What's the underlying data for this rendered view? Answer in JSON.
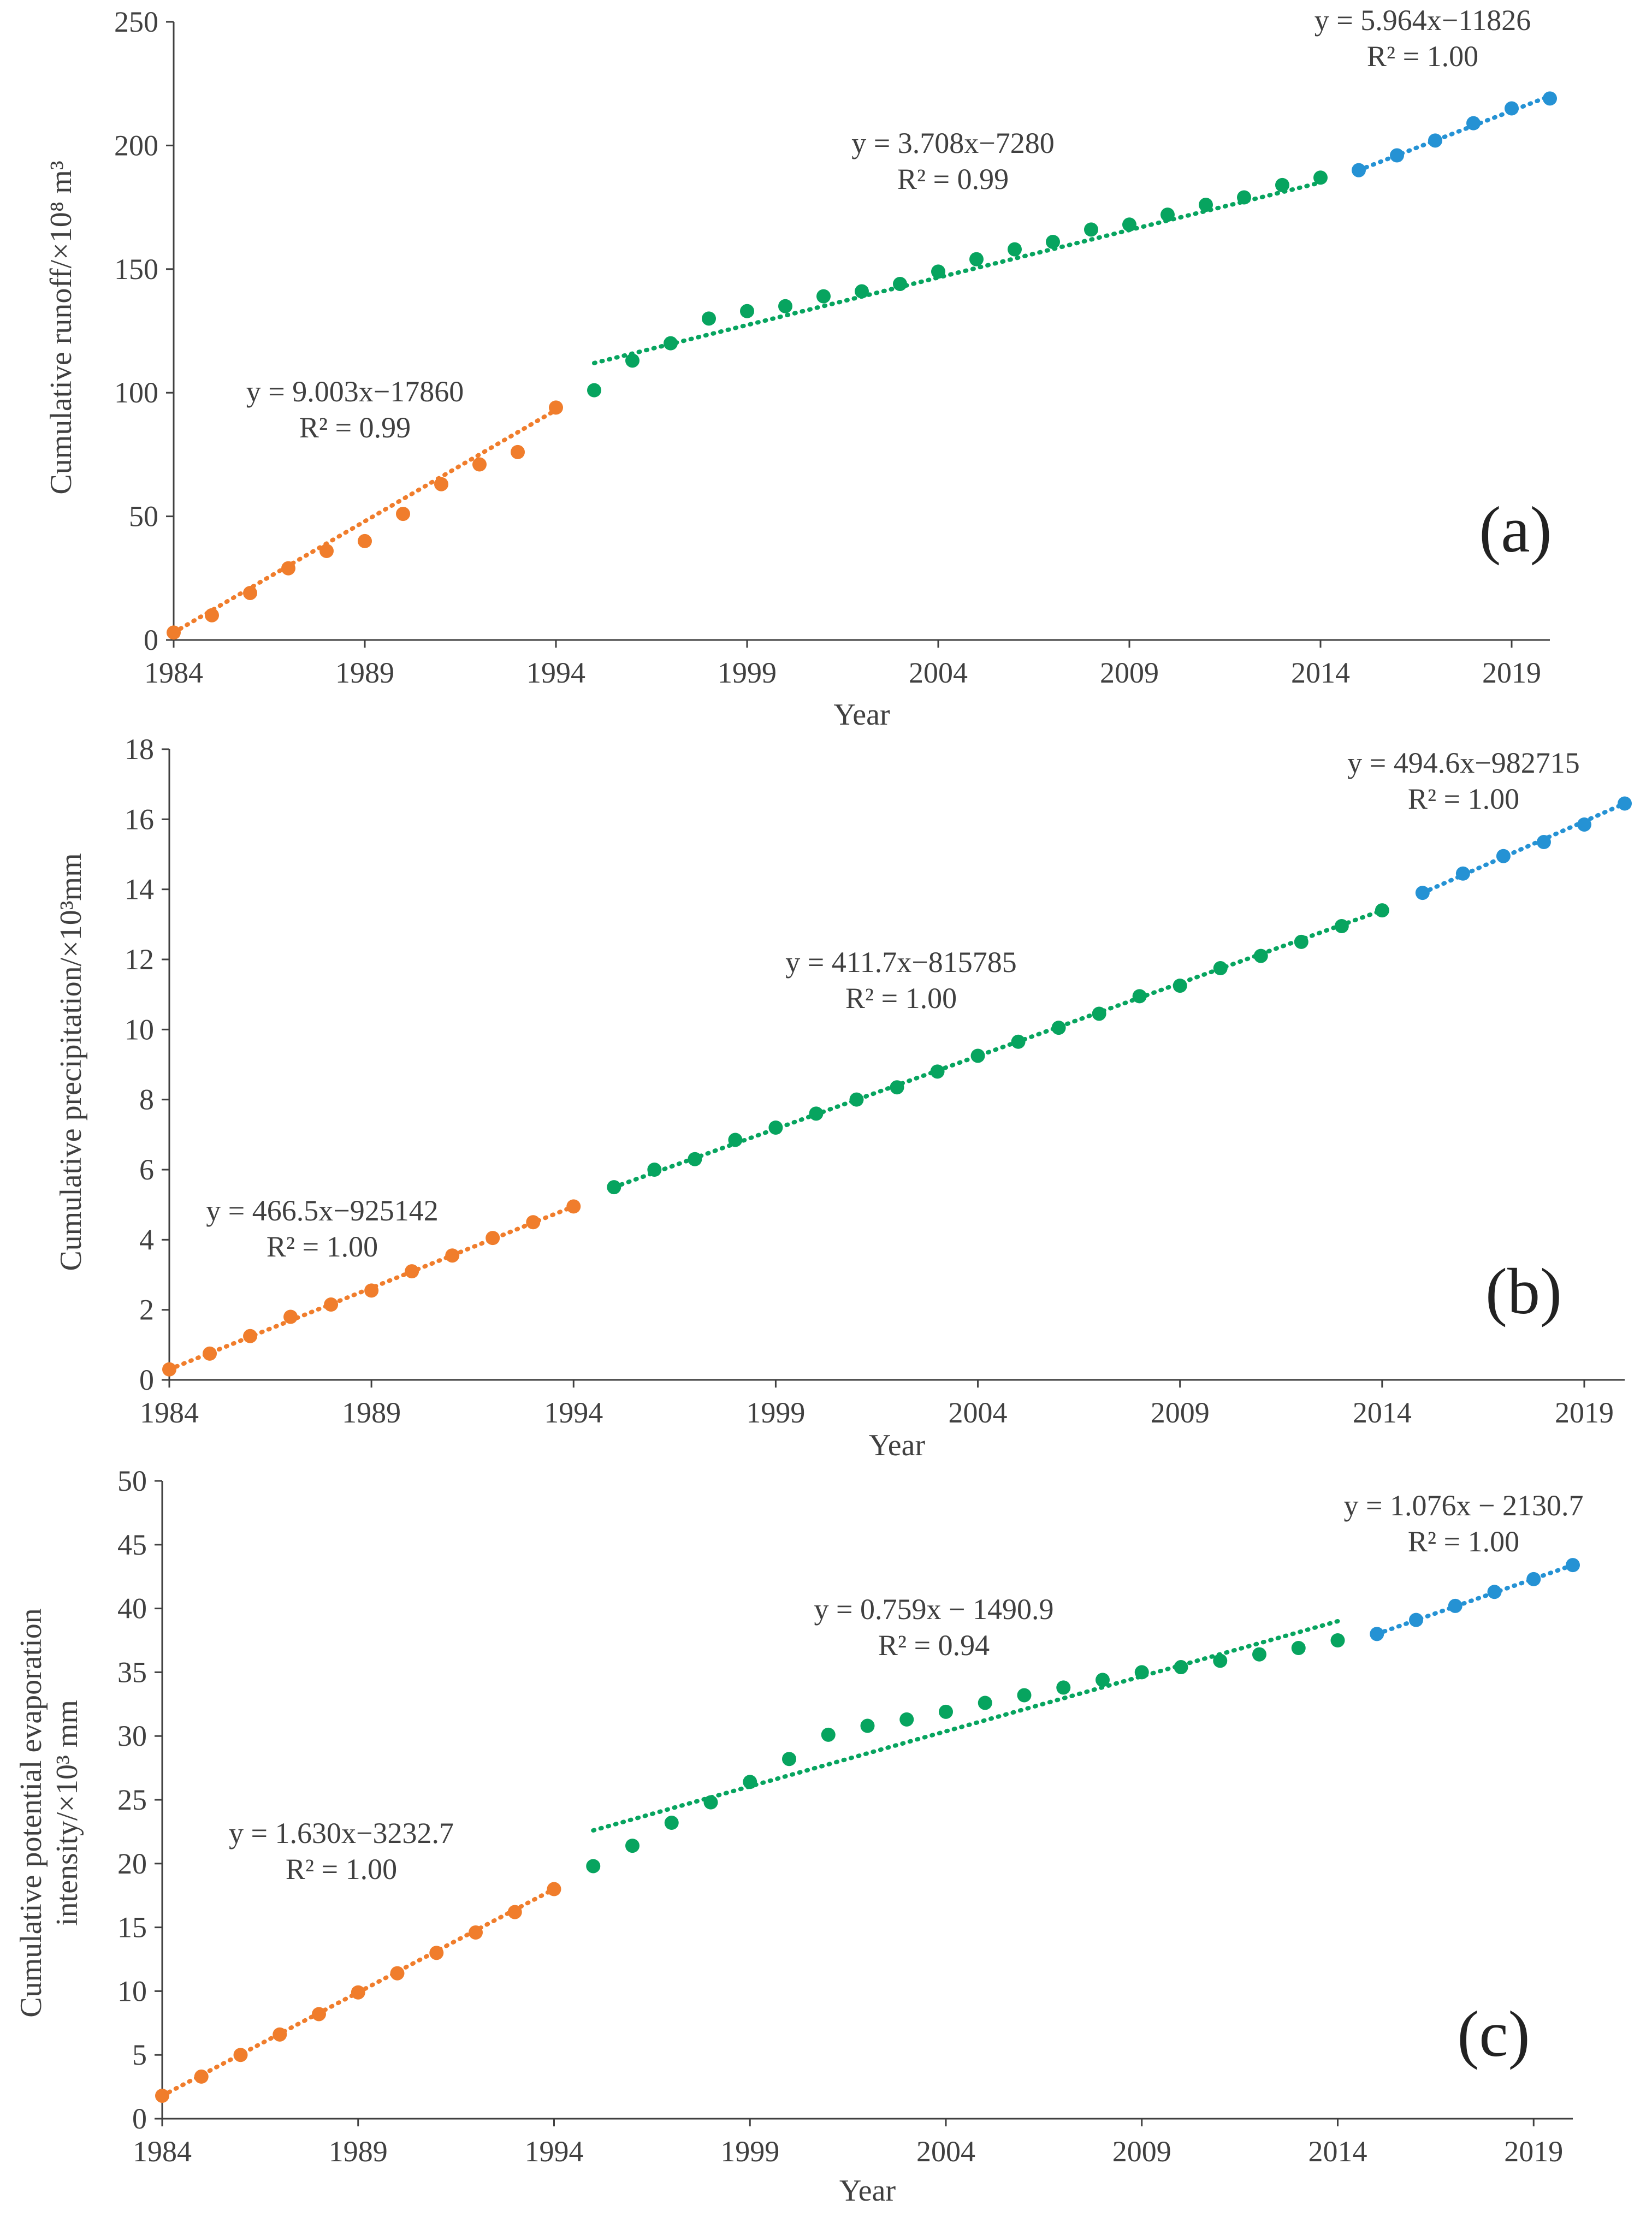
{
  "colors": {
    "pre_1994": "#f07d2c",
    "mid_1995_2014": "#07a45f",
    "post_2015": "#2592d4",
    "axis": "#404040"
  },
  "chart_data": [
    {
      "type": "scatter",
      "panel_label": "(a)",
      "xlabel": "Year",
      "ylabel": "Cumulative runoff/×10⁸ m³",
      "xlim": [
        1984,
        2020
      ],
      "ylim": [
        0,
        250
      ],
      "x_ticks": [
        "1984",
        "1989",
        "1994",
        "1999",
        "2004",
        "2009",
        "2014",
        "2019"
      ],
      "y_ticks": [
        "0",
        "50",
        "100",
        "150",
        "200",
        "250"
      ],
      "series": [
        {
          "x": [
            1984,
            1985,
            1986,
            1987,
            1988,
            1989,
            1990,
            1991,
            1992,
            1993,
            1994
          ],
          "y": [
            3,
            10,
            19,
            29,
            36,
            40,
            51,
            63,
            71,
            76,
            94
          ],
          "trend": {
            "equation": "y = 9.003x−17860",
            "r2": "R² = 0.99",
            "x": [
              1984,
              1994
            ],
            "y": [
              3,
              93
            ]
          }
        },
        {
          "x": [
            1995,
            1996,
            1997,
            1998,
            1999,
            2000,
            2001,
            2002,
            2003,
            2004,
            2005,
            2006,
            2007,
            2008,
            2009,
            2010,
            2011,
            2012,
            2013,
            2014
          ],
          "y": [
            101,
            113,
            120,
            130,
            133,
            135,
            139,
            141,
            144,
            149,
            154,
            158,
            161,
            166,
            168,
            172,
            176,
            179,
            184,
            187
          ],
          "trend": {
            "equation": "y = 3.708x−7280",
            "r2": "R² = 0.99",
            "x": [
              1995,
              2014
            ],
            "y": [
              112,
              185
            ]
          }
        },
        {
          "x": [
            2015,
            2016,
            2017,
            2018,
            2019,
            2020
          ],
          "y": [
            190,
            196,
            202,
            209,
            215,
            219
          ],
          "trend": {
            "equation": "y = 5.964x−11826",
            "r2": "R² = 1.00",
            "x": [
              2015,
              2020
            ],
            "y": [
              190,
              220
            ]
          }
        }
      ]
    },
    {
      "type": "scatter",
      "panel_label": "(b)",
      "xlabel": "Year",
      "ylabel": "Cumulative precipitation/×10³mm",
      "xlim": [
        1984,
        2020
      ],
      "ylim": [
        0,
        18
      ],
      "x_ticks": [
        "1984",
        "1989",
        "1994",
        "1999",
        "2004",
        "2009",
        "2014",
        "2019"
      ],
      "y_ticks": [
        "0",
        "2",
        "4",
        "6",
        "8",
        "10",
        "12",
        "14",
        "16",
        "18"
      ],
      "series": [
        {
          "x": [
            1984,
            1985,
            1986,
            1987,
            1988,
            1989,
            1990,
            1991,
            1992,
            1993,
            1994
          ],
          "y": [
            0.3,
            0.75,
            1.25,
            1.8,
            2.15,
            2.55,
            3.1,
            3.55,
            4.05,
            4.5,
            4.95
          ],
          "trend": {
            "equation": "y = 466.5x−925142",
            "r2": "R² = 1.00",
            "x": [
              1984,
              1994
            ],
            "y": [
              0.3,
              4.95
            ]
          }
        },
        {
          "x": [
            1995,
            1996,
            1997,
            1998,
            1999,
            2000,
            2001,
            2002,
            2003,
            2004,
            2005,
            2006,
            2007,
            2008,
            2009,
            2010,
            2011,
            2012,
            2013,
            2014
          ],
          "y": [
            5.5,
            6.0,
            6.3,
            6.85,
            7.2,
            7.6,
            8.0,
            8.35,
            8.8,
            9.25,
            9.65,
            10.05,
            10.45,
            10.95,
            11.25,
            11.75,
            12.1,
            12.5,
            12.95,
            13.4
          ],
          "trend": {
            "equation": "y = 411.7x−815785",
            "r2": "R² = 1.00",
            "x": [
              1995,
              2014
            ],
            "y": [
              5.5,
              13.4
            ]
          }
        },
        {
          "x": [
            2015,
            2016,
            2017,
            2018,
            2019,
            2020
          ],
          "y": [
            13.9,
            14.45,
            14.95,
            15.35,
            15.85,
            16.45
          ],
          "trend": {
            "equation": "y = 494.6x−982715",
            "r2": "R² = 1.00",
            "x": [
              2015,
              2020
            ],
            "y": [
              13.9,
              16.45
            ]
          }
        }
      ]
    },
    {
      "type": "scatter",
      "panel_label": "(c)",
      "xlabel": "Year",
      "ylabel": "Cumulative potential evaporation intensity/×10³ mm",
      "ylabel_lines": [
        "Cumulative potential evaporation",
        "intensity/×10³ mm"
      ],
      "xlim": [
        1984,
        2020
      ],
      "ylim": [
        0,
        50
      ],
      "x_ticks": [
        "1984",
        "1989",
        "1994",
        "1999",
        "2004",
        "2009",
        "2014",
        "2019"
      ],
      "y_ticks": [
        "0",
        "5",
        "10",
        "15",
        "20",
        "25",
        "30",
        "35",
        "40",
        "45",
        "50"
      ],
      "series": [
        {
          "x": [
            1984,
            1985,
            1986,
            1987,
            1988,
            1989,
            1990,
            1991,
            1992,
            1993,
            1994
          ],
          "y": [
            1.8,
            3.3,
            5.0,
            6.6,
            8.2,
            9.9,
            11.4,
            13.0,
            14.6,
            16.2,
            18.0
          ],
          "trend": {
            "equation": "y = 1.630x−3232.7",
            "r2": "R² = 1.00",
            "x": [
              1984,
              1994
            ],
            "y": [
              1.8,
              18.0
            ]
          }
        },
        {
          "x": [
            1995,
            1996,
            1997,
            1998,
            1999,
            2000,
            2001,
            2002,
            2003,
            2004,
            2005,
            2006,
            2007,
            2008,
            2009,
            2010,
            2011,
            2012,
            2013,
            2014
          ],
          "y": [
            19.8,
            21.4,
            23.2,
            24.8,
            26.4,
            28.2,
            30.1,
            30.8,
            31.3,
            31.9,
            32.6,
            33.2,
            33.8,
            34.4,
            35.0,
            35.4,
            35.9,
            36.4,
            36.9,
            37.5
          ],
          "trend": {
            "equation": "y = 0.759x − 1490.9",
            "r2": "R² = 0.94",
            "x": [
              1995,
              2014
            ],
            "y": [
              22.6,
              39.0
            ]
          }
        },
        {
          "x": [
            2015,
            2016,
            2017,
            2018,
            2019,
            2020
          ],
          "y": [
            38.0,
            39.1,
            40.2,
            41.3,
            42.3,
            43.4
          ],
          "trend": {
            "equation": "y = 1.076x − 2130.7",
            "r2": "R² = 1.00",
            "x": [
              2015,
              2020
            ],
            "y": [
              38.0,
              43.4
            ]
          }
        }
      ]
    }
  ]
}
